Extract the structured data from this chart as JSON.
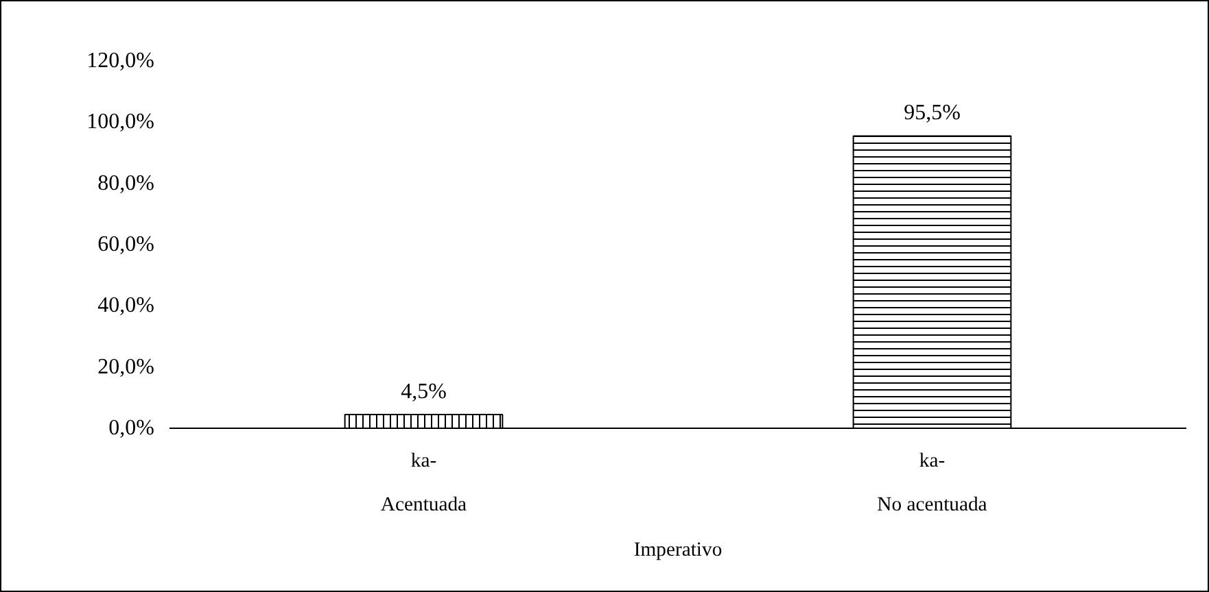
{
  "chart_data": {
    "type": "bar",
    "categories": [
      "ka-\nAcentuada",
      "ka-\nNo acentuada"
    ],
    "xlabel": "Imperativo",
    "values": [
      4.5,
      95.5
    ],
    "colors": [
      "#000000",
      "#000000"
    ],
    "value_labels": [
      "4,5%",
      "95,5%"
    ],
    "ylim": [
      0,
      120
    ],
    "yticks": [
      {
        "value": 0,
        "label": "0,0%"
      },
      {
        "value": 20,
        "label": "20,0%"
      },
      {
        "value": 40,
        "label": "40,0%"
      },
      {
        "value": 60,
        "label": "60,0%"
      },
      {
        "value": 80,
        "label": "80,0%"
      },
      {
        "value": 100,
        "label": "100,0%"
      },
      {
        "value": 120,
        "label": "120,0%"
      }
    ],
    "grid": false
  }
}
